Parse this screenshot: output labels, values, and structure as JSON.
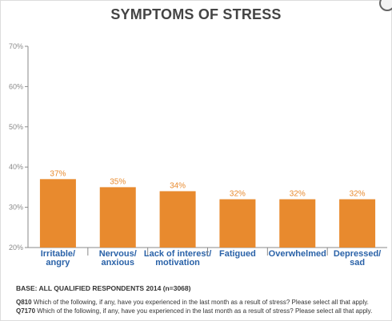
{
  "chart_data": {
    "type": "bar",
    "title": "SYMPTOMS OF STRESS",
    "categories": [
      [
        "Irritable/",
        "angry"
      ],
      [
        "Nervous/",
        "anxious"
      ],
      [
        "Lack of interest/",
        "motivation"
      ],
      [
        "Fatigued"
      ],
      [
        "Overwhelmed"
      ],
      [
        "Depressed/",
        "sad"
      ]
    ],
    "values": [
      37,
      35,
      34,
      32,
      32,
      32
    ],
    "data_labels": [
      "37%",
      "35%",
      "34%",
      "32%",
      "32%",
      "32%"
    ],
    "ylim": [
      20,
      70
    ],
    "yticks": [
      20,
      30,
      40,
      50,
      60,
      70
    ],
    "ytick_labels": [
      "20%",
      "30%",
      "40%",
      "50%",
      "60%",
      "70%"
    ],
    "xlabel": "",
    "ylabel": "",
    "grid": false,
    "bar_color": "#e88a2e",
    "label_color": "#e88a2e",
    "category_color": "#2a62a8",
    "axis_color": "#8a8a8a"
  },
  "footer": {
    "base": "BASE: ALL QUALIFIED RESPONDENTS 2014 (n=3068)",
    "q1_code": "Q810",
    "q1_text": "Which of the following, if any, have you experienced in the last month as a result of stress? Please select all that apply.",
    "q2_code": "Q7170",
    "q2_text": "Which of the following, if any, have you experienced in the last month as a result of stress? Please select all that apply."
  }
}
